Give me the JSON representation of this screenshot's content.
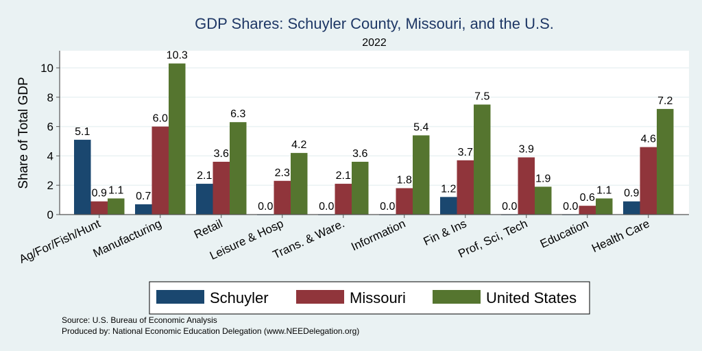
{
  "chart_data": {
    "type": "bar",
    "title": "GDP Shares: Schuyler County, Missouri, and the U.S.",
    "subtitle": "2022",
    "xlabel": "",
    "ylabel": "Share of Total GDP",
    "ylim": [
      0,
      11.2
    ],
    "yticks": [
      0,
      2,
      4,
      6,
      8,
      10
    ],
    "grid": true,
    "legend_position": "bottom",
    "categories": [
      "Ag/For/Fish/Hunt",
      "Manufacturing",
      "Retail",
      "Leisure & Hosp",
      "Trans. & Ware.",
      "Information",
      "Fin & Ins",
      "Prof, Sci, Tech",
      "Education",
      "Health Care"
    ],
    "series": [
      {
        "name": "Schuyler",
        "color": "#1a476f",
        "values": [
          5.1,
          0.7,
          2.1,
          0.0,
          0.0,
          0.0,
          1.2,
          0.0,
          0.0,
          0.9
        ]
      },
      {
        "name": "Missouri",
        "color": "#90353b",
        "values": [
          0.9,
          6.0,
          3.6,
          2.3,
          2.1,
          1.8,
          3.7,
          3.9,
          0.6,
          4.6
        ]
      },
      {
        "name": "United States",
        "color": "#55752f",
        "values": [
          1.1,
          10.3,
          6.3,
          4.2,
          3.6,
          5.4,
          7.5,
          1.9,
          1.1,
          7.2
        ]
      }
    ],
    "notes": [
      "Source: U.S. Bureau of Economic Analysis",
      "Produced by: National Economic Education Delegation (www.NEEDelegation.org)"
    ]
  }
}
